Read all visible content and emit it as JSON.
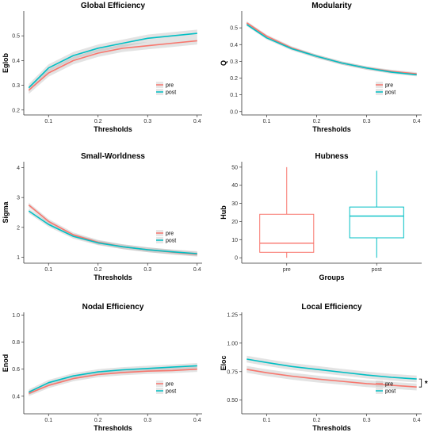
{
  "colors": {
    "pre": "#F8766D",
    "post": "#00BFC4",
    "axis": "#333333"
  },
  "chart_data": [
    {
      "type": "line",
      "title": "Global Efficiency",
      "xlabel": "Thresholds",
      "ylabel": "Eglob",
      "xlim": [
        0.05,
        0.41
      ],
      "ylim": [
        0.18,
        0.6
      ],
      "xticks": [
        "0.1",
        "0.2",
        "0.3",
        "0.4"
      ],
      "yticks": [
        "0.2",
        "0.3",
        "0.4",
        "0.5"
      ],
      "x": [
        0.06,
        0.1,
        0.15,
        0.2,
        0.25,
        0.3,
        0.35,
        0.4
      ],
      "series": [
        {
          "name": "pre",
          "values": [
            0.28,
            0.35,
            0.4,
            0.43,
            0.45,
            0.46,
            0.47,
            0.48
          ],
          "band": 0.015
        },
        {
          "name": "post",
          "values": [
            0.29,
            0.37,
            0.42,
            0.45,
            0.47,
            0.49,
            0.5,
            0.51
          ],
          "band": 0.015
        }
      ],
      "legend": "bottom-right",
      "grid": false
    },
    {
      "type": "line",
      "title": "Modularity",
      "xlabel": "Thresholds",
      "ylabel": "Q",
      "xlim": [
        0.05,
        0.41
      ],
      "ylim": [
        -0.02,
        0.6
      ],
      "xticks": [
        "0.1",
        "0.2",
        "0.3",
        "0.4"
      ],
      "yticks": [
        "0.0",
        "0.1",
        "0.2",
        "0.3",
        "0.4",
        "0.5"
      ],
      "x": [
        0.06,
        0.1,
        0.15,
        0.2,
        0.25,
        0.3,
        0.35,
        0.4
      ],
      "series": [
        {
          "name": "pre",
          "values": [
            0.53,
            0.45,
            0.38,
            0.33,
            0.29,
            0.26,
            0.24,
            0.225
          ],
          "band": 0.01
        },
        {
          "name": "post",
          "values": [
            0.52,
            0.44,
            0.375,
            0.33,
            0.29,
            0.26,
            0.235,
            0.22
          ],
          "band": 0.01
        }
      ],
      "legend": "bottom-right",
      "grid": false
    },
    {
      "type": "line",
      "title": "Small-Worldness",
      "xlabel": "Thresholds",
      "ylabel": "Sigma",
      "xlim": [
        0.05,
        0.41
      ],
      "ylim": [
        0.8,
        4.2
      ],
      "xticks": [
        "0.1",
        "0.2",
        "0.3",
        "0.4"
      ],
      "yticks": [
        "1",
        "2",
        "3",
        "4"
      ],
      "x": [
        0.06,
        0.1,
        0.15,
        0.2,
        0.25,
        0.3,
        0.35,
        0.4
      ],
      "series": [
        {
          "name": "pre",
          "values": [
            2.75,
            2.2,
            1.75,
            1.5,
            1.35,
            1.25,
            1.17,
            1.1
          ],
          "band": 0.08
        },
        {
          "name": "post",
          "values": [
            2.55,
            2.1,
            1.7,
            1.48,
            1.35,
            1.25,
            1.18,
            1.12
          ],
          "band": 0.08
        }
      ],
      "legend": "bottom-right",
      "grid": false
    },
    {
      "type": "box",
      "title": "Hubness",
      "xlabel": "Groups",
      "ylabel": "Hub",
      "ylim": [
        -3,
        53
      ],
      "yticks": [
        "0",
        "10",
        "20",
        "30",
        "40",
        "50"
      ],
      "categories": [
        "pre",
        "post"
      ],
      "boxes": [
        {
          "name": "pre",
          "min": 0,
          "q1": 3,
          "median": 8,
          "q3": 24,
          "max": 50
        },
        {
          "name": "post",
          "min": 0,
          "q1": 11,
          "median": 23,
          "q3": 28,
          "max": 48
        }
      ],
      "grid": false
    },
    {
      "type": "line",
      "title": "Nodal Efficiency",
      "xlabel": "Thresholds",
      "ylabel": "Enod",
      "xlim": [
        0.05,
        0.41
      ],
      "ylim": [
        0.27,
        1.02
      ],
      "xticks": [
        "0.1",
        "0.2",
        "0.3",
        "0.4"
      ],
      "yticks": [
        "0.4",
        "0.6",
        "0.8",
        "1.0"
      ],
      "x": [
        0.06,
        0.1,
        0.15,
        0.2,
        0.25,
        0.3,
        0.35,
        0.4
      ],
      "series": [
        {
          "name": "pre",
          "values": [
            0.42,
            0.48,
            0.53,
            0.56,
            0.575,
            0.585,
            0.59,
            0.6
          ],
          "band": 0.02
        },
        {
          "name": "post",
          "values": [
            0.43,
            0.5,
            0.55,
            0.58,
            0.595,
            0.605,
            0.615,
            0.625
          ],
          "band": 0.02
        }
      ],
      "legend": "bottom-right",
      "grid": false
    },
    {
      "type": "line",
      "title": "Local Efficiency",
      "xlabel": "Thresholds",
      "ylabel": "Eloc",
      "xlim": [
        0.05,
        0.41
      ],
      "ylim": [
        0.38,
        1.27
      ],
      "xticks": [
        "0.1",
        "0.2",
        "0.3",
        "0.4"
      ],
      "yticks": [
        "0.50",
        "0.75",
        "1.00",
        "1.25"
      ],
      "x": [
        0.06,
        0.1,
        0.15,
        0.2,
        0.25,
        0.3,
        0.35,
        0.4
      ],
      "series": [
        {
          "name": "pre",
          "values": [
            0.77,
            0.74,
            0.71,
            0.685,
            0.665,
            0.645,
            0.63,
            0.615
          ],
          "band": 0.03
        },
        {
          "name": "post",
          "values": [
            0.86,
            0.83,
            0.795,
            0.77,
            0.745,
            0.72,
            0.7,
            0.685
          ],
          "band": 0.03
        }
      ],
      "legend": "bottom-right",
      "annotation": "*",
      "grid": false
    }
  ]
}
